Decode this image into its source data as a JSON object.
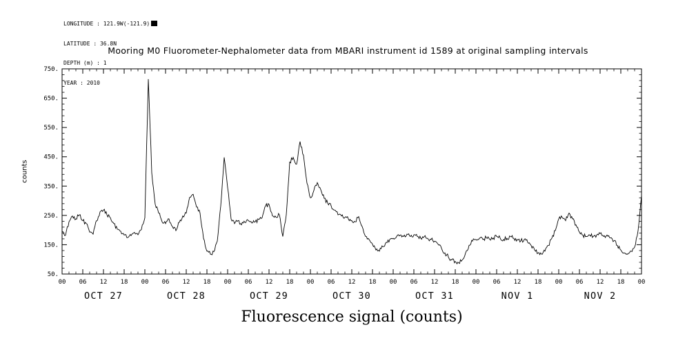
{
  "meta": {
    "longitude": "LONGITUDE : 121.9W(-121.9)",
    "latitude": "LATITUDE : 36.8N",
    "depth": "DEPTH (m) : 1",
    "year": "YEAR : 2010"
  },
  "chart_data": {
    "type": "line",
    "title": "Mooring M0 Fluorometer-Nephalometer data from MBARI instrument id 1589 at original sampling intervals",
    "xlabel": "Fluorescence signal (counts)",
    "ylabel": "counts",
    "ylim": [
      50,
      750
    ],
    "yticks": [
      50,
      150,
      250,
      350,
      450,
      550,
      650,
      750
    ],
    "ytick_labels": [
      "50.",
      "150.",
      "250.",
      "350.",
      "450.",
      "550.",
      "650.",
      "750."
    ],
    "x_unit": "hours",
    "x_hours_total": 168,
    "x_step_hours": 1,
    "hour_tick_interval": 6,
    "hour_tick_labels": [
      "00",
      "06",
      "12",
      "18"
    ],
    "day_labels": [
      "OCT 27",
      "OCT 28",
      "OCT 29",
      "OCT 30",
      "OCT 31",
      "NOV 1",
      "NOV 2"
    ],
    "grid": false,
    "legend": false,
    "line_color": "#000000",
    "values": [
      195,
      182,
      228,
      248,
      238,
      252,
      232,
      222,
      193,
      186,
      232,
      262,
      268,
      252,
      242,
      222,
      203,
      196,
      183,
      174,
      181,
      192,
      184,
      202,
      242,
      715,
      395,
      288,
      258,
      228,
      222,
      238,
      212,
      198,
      226,
      248,
      258,
      312,
      322,
      278,
      258,
      172,
      128,
      118,
      126,
      162,
      282,
      448,
      345,
      238,
      222,
      232,
      218,
      226,
      232,
      224,
      228,
      236,
      242,
      282,
      288,
      248,
      244,
      252,
      178,
      252,
      432,
      448,
      425,
      502,
      455,
      360,
      310,
      335,
      362,
      338,
      308,
      292,
      283,
      268,
      252,
      248,
      243,
      238,
      232,
      228,
      246,
      212,
      178,
      168,
      152,
      132,
      128,
      143,
      158,
      168,
      172,
      178,
      183,
      178,
      186,
      178,
      184,
      178,
      172,
      178,
      172,
      168,
      162,
      152,
      138,
      122,
      108,
      98,
      93,
      88,
      98,
      122,
      148,
      162,
      168,
      172,
      168,
      174,
      168,
      173,
      178,
      173,
      168,
      172,
      178,
      172,
      168,
      163,
      168,
      158,
      148,
      132,
      122,
      118,
      128,
      148,
      172,
      198,
      238,
      243,
      232,
      258,
      238,
      218,
      193,
      183,
      178,
      183,
      178,
      183,
      188,
      178,
      183,
      173,
      163,
      148,
      132,
      122,
      118,
      128,
      142,
      198,
      318
    ]
  }
}
